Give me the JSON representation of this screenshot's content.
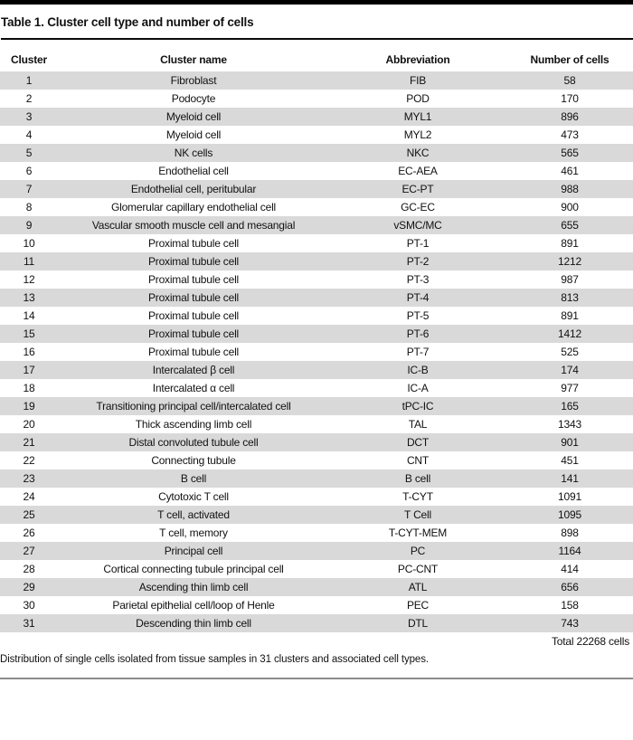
{
  "title": "Table 1. Cluster cell type and number of cells",
  "table": {
    "headers": [
      "Cluster",
      "Cluster name",
      "Abbreviation",
      "Number of cells"
    ],
    "rows": [
      [
        "1",
        "Fibroblast",
        "FIB",
        "58"
      ],
      [
        "2",
        "Podocyte",
        "POD",
        "170"
      ],
      [
        "3",
        "Myeloid cell",
        "MYL1",
        "896"
      ],
      [
        "4",
        "Myeloid cell",
        "MYL2",
        "473"
      ],
      [
        "5",
        "NK cells",
        "NKC",
        "565"
      ],
      [
        "6",
        "Endothelial cell",
        "EC-AEA",
        "461"
      ],
      [
        "7",
        "Endothelial cell, peritubular",
        "EC-PT",
        "988"
      ],
      [
        "8",
        "Glomerular capillary endothelial cell",
        "GC-EC",
        "900"
      ],
      [
        "9",
        "Vascular smooth muscle cell and mesangial",
        "vSMC/MC",
        "655"
      ],
      [
        "10",
        "Proximal tubule cell",
        "PT-1",
        "891"
      ],
      [
        "11",
        "Proximal tubule cell",
        "PT-2",
        "1212"
      ],
      [
        "12",
        "Proximal tubule cell",
        "PT-3",
        "987"
      ],
      [
        "13",
        "Proximal tubule cell",
        "PT-4",
        "813"
      ],
      [
        "14",
        "Proximal tubule cell",
        "PT-5",
        "891"
      ],
      [
        "15",
        "Proximal tubule cell",
        "PT-6",
        "1412"
      ],
      [
        "16",
        "Proximal tubule cell",
        "PT-7",
        "525"
      ],
      [
        "17",
        "Intercalated β cell",
        "IC-B",
        "174"
      ],
      [
        "18",
        "Intercalated α cell",
        "IC-A",
        "977"
      ],
      [
        "19",
        "Transitioning principal cell/intercalated cell",
        "tPC-IC",
        "165"
      ],
      [
        "20",
        "Thick ascending limb cell",
        "TAL",
        "1343"
      ],
      [
        "21",
        "Distal convoluted tubule cell",
        "DCT",
        "901"
      ],
      [
        "22",
        "Connecting tubule",
        "CNT",
        "451"
      ],
      [
        "23",
        "B cell",
        "B cell",
        "141"
      ],
      [
        "24",
        "Cytotoxic T cell",
        "T-CYT",
        "1091"
      ],
      [
        "25",
        "T cell, activated",
        "T Cell",
        "1095"
      ],
      [
        "26",
        "T cell, memory",
        "T-CYT-MEM",
        "898"
      ],
      [
        "27",
        "Principal cell",
        "PC",
        "1164"
      ],
      [
        "28",
        "Cortical connecting tubule principal cell",
        "PC-CNT",
        "414"
      ],
      [
        "29",
        "Ascending thin limb cell",
        "ATL",
        "656"
      ],
      [
        "30",
        "Parietal epithelial cell/loop of Henle",
        "PEC",
        "158"
      ],
      [
        "31",
        "Descending thin limb cell",
        "DTL",
        "743"
      ]
    ],
    "total_label": "Total 22268 cells"
  },
  "footnote": "Distribution of single cells isolated from tissue samples in 31 clusters and associated cell types.",
  "colors": {
    "stripe": "#d9d9d9",
    "top_bar": "#000000",
    "title_rule": "#0a0a0a",
    "bottom_rule": "#8c8c8c",
    "text": "#111111"
  }
}
